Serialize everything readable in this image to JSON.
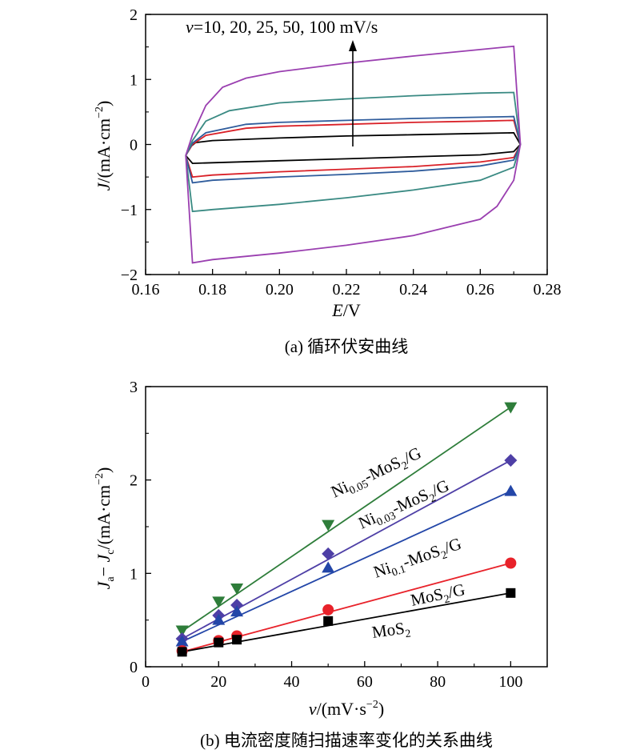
{
  "chart_data": [
    {
      "type": "line",
      "caption": "(a) 循环伏安曲线",
      "xlabel": "E/V",
      "ylabel": "J/(mA·cm⁻²)",
      "xlim": [
        0.16,
        0.28
      ],
      "ylim": [
        -2,
        2
      ],
      "xticks": [
        "0.16",
        "0.18",
        "0.20",
        "0.22",
        "0.24",
        "0.26",
        "0.28"
      ],
      "yticks": [
        "−2",
        "−1",
        "0",
        "1",
        "2"
      ],
      "annotation": "v=10, 20, 25, 50, 100 mV/s",
      "grid": false,
      "series": [
        {
          "color": "#000000",
          "values": [
            [
              0.172,
              -0.17
            ],
            [
              0.173,
              -0.05
            ],
            [
              0.175,
              0.03
            ],
            [
              0.18,
              0.06
            ],
            [
              0.2,
              0.1
            ],
            [
              0.22,
              0.13
            ],
            [
              0.24,
              0.15
            ],
            [
              0.26,
              0.17
            ],
            [
              0.27,
              0.18
            ],
            [
              0.272,
              0.0
            ],
            [
              0.27,
              -0.11
            ],
            [
              0.26,
              -0.16
            ],
            [
              0.24,
              -0.19
            ],
            [
              0.22,
              -0.22
            ],
            [
              0.2,
              -0.25
            ],
            [
              0.18,
              -0.28
            ],
            [
              0.174,
              -0.29
            ],
            [
              0.172,
              -0.17
            ]
          ]
        },
        {
          "color": "#d92027",
          "values": [
            [
              0.172,
              -0.17
            ],
            [
              0.174,
              0.0
            ],
            [
              0.178,
              0.14
            ],
            [
              0.19,
              0.25
            ],
            [
              0.2,
              0.28
            ],
            [
              0.22,
              0.31
            ],
            [
              0.24,
              0.34
            ],
            [
              0.26,
              0.36
            ],
            [
              0.27,
              0.37
            ],
            [
              0.272,
              0.0
            ],
            [
              0.27,
              -0.2
            ],
            [
              0.26,
              -0.27
            ],
            [
              0.24,
              -0.34
            ],
            [
              0.22,
              -0.38
            ],
            [
              0.2,
              -0.42
            ],
            [
              0.18,
              -0.47
            ],
            [
              0.174,
              -0.5
            ],
            [
              0.172,
              -0.17
            ]
          ]
        },
        {
          "color": "#2f5c9c",
          "values": [
            [
              0.172,
              -0.17
            ],
            [
              0.174,
              0.02
            ],
            [
              0.178,
              0.18
            ],
            [
              0.19,
              0.31
            ],
            [
              0.2,
              0.34
            ],
            [
              0.22,
              0.37
            ],
            [
              0.24,
              0.4
            ],
            [
              0.26,
              0.42
            ],
            [
              0.27,
              0.43
            ],
            [
              0.272,
              0.0
            ],
            [
              0.27,
              -0.24
            ],
            [
              0.26,
              -0.33
            ],
            [
              0.24,
              -0.41
            ],
            [
              0.22,
              -0.46
            ],
            [
              0.2,
              -0.5
            ],
            [
              0.18,
              -0.55
            ],
            [
              0.174,
              -0.59
            ],
            [
              0.172,
              -0.17
            ]
          ]
        },
        {
          "color": "#3a8a83",
          "values": [
            [
              0.172,
              -0.17
            ],
            [
              0.174,
              0.06
            ],
            [
              0.178,
              0.36
            ],
            [
              0.185,
              0.52
            ],
            [
              0.2,
              0.64
            ],
            [
              0.22,
              0.7
            ],
            [
              0.24,
              0.75
            ],
            [
              0.26,
              0.79
            ],
            [
              0.27,
              0.8
            ],
            [
              0.272,
              0.0
            ],
            [
              0.27,
              -0.35
            ],
            [
              0.26,
              -0.55
            ],
            [
              0.24,
              -0.7
            ],
            [
              0.22,
              -0.82
            ],
            [
              0.2,
              -0.92
            ],
            [
              0.18,
              -1.0
            ],
            [
              0.174,
              -1.03
            ],
            [
              0.172,
              -0.17
            ]
          ]
        },
        {
          "color": "#9a3fb0",
          "values": [
            [
              0.172,
              -0.17
            ],
            [
              0.174,
              0.15
            ],
            [
              0.178,
              0.6
            ],
            [
              0.183,
              0.88
            ],
            [
              0.19,
              1.02
            ],
            [
              0.2,
              1.12
            ],
            [
              0.22,
              1.25
            ],
            [
              0.24,
              1.36
            ],
            [
              0.26,
              1.46
            ],
            [
              0.27,
              1.51
            ],
            [
              0.272,
              0.0
            ],
            [
              0.27,
              -0.55
            ],
            [
              0.265,
              -0.95
            ],
            [
              0.26,
              -1.15
            ],
            [
              0.24,
              -1.4
            ],
            [
              0.22,
              -1.55
            ],
            [
              0.2,
              -1.67
            ],
            [
              0.18,
              -1.77
            ],
            [
              0.174,
              -1.82
            ],
            [
              0.172,
              -0.17
            ]
          ]
        }
      ]
    },
    {
      "type": "scatter",
      "caption": "(b) 电流密度随扫描速率变化的关系曲线",
      "xlabel": "v/(mV·s⁻²)",
      "ylabel": "Ja− Jc/(mA·cm⁻²)",
      "xlim": [
        0,
        110
      ],
      "ylim": [
        0,
        3
      ],
      "xticks": [
        "0",
        "20",
        "40",
        "60",
        "80",
        "100"
      ],
      "yticks": [
        "0",
        "1",
        "2",
        "3"
      ],
      "grid": false,
      "x": [
        10,
        20,
        25,
        50,
        100
      ],
      "series": [
        {
          "name": "Ni0.05-MoS2/G",
          "color": "#2e7d3a",
          "marker": "triangle-down",
          "values": [
            0.39,
            0.7,
            0.84,
            1.52,
            2.78
          ],
          "fit": [
            0.38,
            2.78
          ]
        },
        {
          "name": "Ni0.03-MoS2/G",
          "color": "#4e3fa6",
          "marker": "diamond",
          "values": [
            0.3,
            0.55,
            0.66,
            1.21,
            2.21
          ],
          "fit": [
            0.3,
            2.21
          ]
        },
        {
          "name": "Ni0.1-MoS2/G",
          "color": "#2346a8",
          "marker": "triangle-up",
          "values": [
            0.27,
            0.5,
            0.59,
            1.06,
            1.88
          ],
          "fit": [
            0.27,
            1.88
          ]
        },
        {
          "name": "MoS2/G",
          "color": "#e8222a",
          "marker": "circle",
          "values": [
            0.17,
            0.28,
            0.33,
            0.61,
            1.11
          ],
          "fit": [
            0.16,
            1.11
          ]
        },
        {
          "name": "MoS2",
          "color": "#000000",
          "marker": "square",
          "values": [
            0.16,
            0.26,
            0.29,
            0.49,
            0.79
          ],
          "fit": [
            0.16,
            0.79
          ]
        }
      ]
    }
  ]
}
